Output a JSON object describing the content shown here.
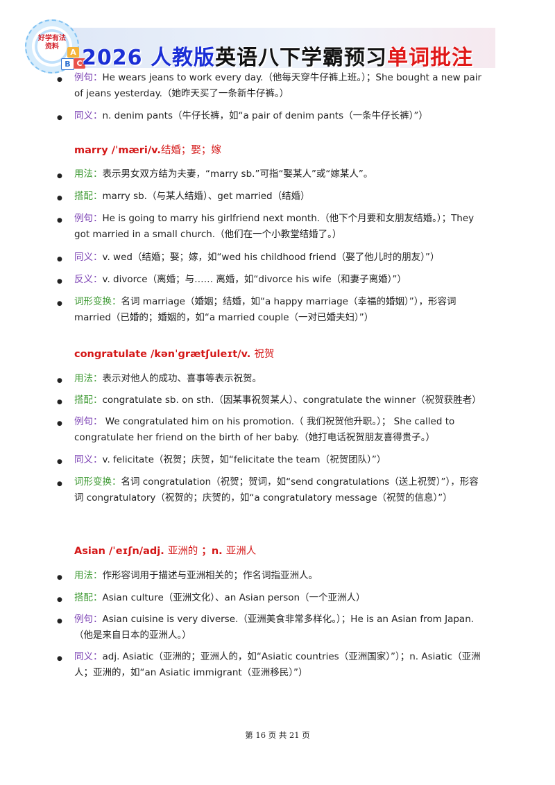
{
  "header": {
    "title_blue": "2026 人教版",
    "title_black": "英语八下学霸预习",
    "title_red": "单词批注",
    "logo_text_line1": "好学有法",
    "logo_text_line2": "资料",
    "logo_blocks": [
      "A",
      "B",
      "C"
    ],
    "colors": {
      "blue": "#1b2fd6",
      "red": "#e01818",
      "label_purple": "#7a3fb3",
      "label_green": "#3f9a34",
      "head_red": "#d41717"
    }
  },
  "items": [
    {
      "label": "例句：",
      "text": "He wears jeans to work every day.（他每天穿牛仔裤上班。）；She bought a new pair of jeans yesterday.（她昨天买了一条新牛仔裤。）"
    },
    {
      "label": "同义：",
      "text": "n. denim pants（牛仔长裤，如“a pair of denim pants（一条牛仔长裤）”）"
    }
  ],
  "entries": [
    {
      "head": "marry /ˈmæri/v.",
      "head_cn": "结婚；娶；嫁",
      "lines": [
        {
          "label": "用法：",
          "text": "表示男女双方结为夫妻，“marry sb.”可指“娶某人”或“嫁某人”。"
        },
        {
          "label": "搭配：",
          "text": "marry sb.（与某人结婚）、get married（结婚）"
        },
        {
          "label": "例句：",
          "text": "He is going to marry his girlfriend next month.（他下个月要和女朋友结婚。）；They got married in a small church.（他们在一个小教堂结婚了。）"
        },
        {
          "label": "同义：",
          "text": "v. wed（结婚；娶；嫁，如“wed his childhood friend（娶了他儿时的朋友）”）"
        },
        {
          "label": "反义：",
          "text": "v. divorce（离婚；与…… 离婚，如“divorce his wife（和妻子离婚）”）"
        },
        {
          "label": "词形变换：",
          "text": "名词  marriage（婚姻；结婚，如“a happy marriage（幸福的婚姻）”），形容词  married（已婚的；婚姻的，如“a married couple（一对已婚夫妇）”）"
        }
      ]
    },
    {
      "head": "congratulate /kənˈɡrætʃuleɪt/v.",
      "head_cn": "祝贺",
      "lines": [
        {
          "label": "用法：",
          "text": "表示对他人的成功、喜事等表示祝贺。"
        },
        {
          "label": "搭配：",
          "text": "congratulate sb. on sth.（因某事祝贺某人）、congratulate the winner（祝贺获胜者）"
        },
        {
          "label": "例句：",
          "text": " We congratulated him on his promotion.（  我们祝贺他升职。）；  She called to congratulate her friend on the birth of her baby.（她打电话祝贺朋友喜得贵子。）"
        },
        {
          "label": "同义：",
          "text": "v. felicitate（祝贺；庆贺，如“felicitate the team（祝贺团队）”）"
        },
        {
          "label": "词形变换：",
          "text": "名词  congratulation（祝贺；贺词，如“send congratulations（送上祝贺）”），形容词  congratulatory（祝贺的；庆贺的，如“a congratulatory message（祝贺的信息）”）"
        }
      ]
    },
    {
      "head": "Asian /ˈeɪʃn/adj.",
      "head_cn": "亚洲的",
      "head_mid": " ；n.",
      "head_cn2": "亚洲人",
      "lines": [
        {
          "label": "用法：",
          "text": "作形容词用于描述与亚洲相关的；作名词指亚洲人。"
        },
        {
          "label": "搭配：",
          "text": "Asian culture（亚洲文化）、an Asian person（一个亚洲人）"
        },
        {
          "label": "例句：",
          "text": "Asian cuisine is very diverse.（亚洲美食非常多样化。）；He is an Asian from Japan.（他是来自日本的亚洲人。）"
        },
        {
          "label": "同义：",
          "text": "adj. Asiatic（亚洲的；亚洲人的，如“Asiatic countries（亚洲国家）”）；n. Asiatic（亚洲人；亚洲的，如“an Asiatic immigrant（亚洲移民）”）"
        }
      ]
    }
  ],
  "footer": {
    "text": "第 16 页 共 21 页"
  }
}
